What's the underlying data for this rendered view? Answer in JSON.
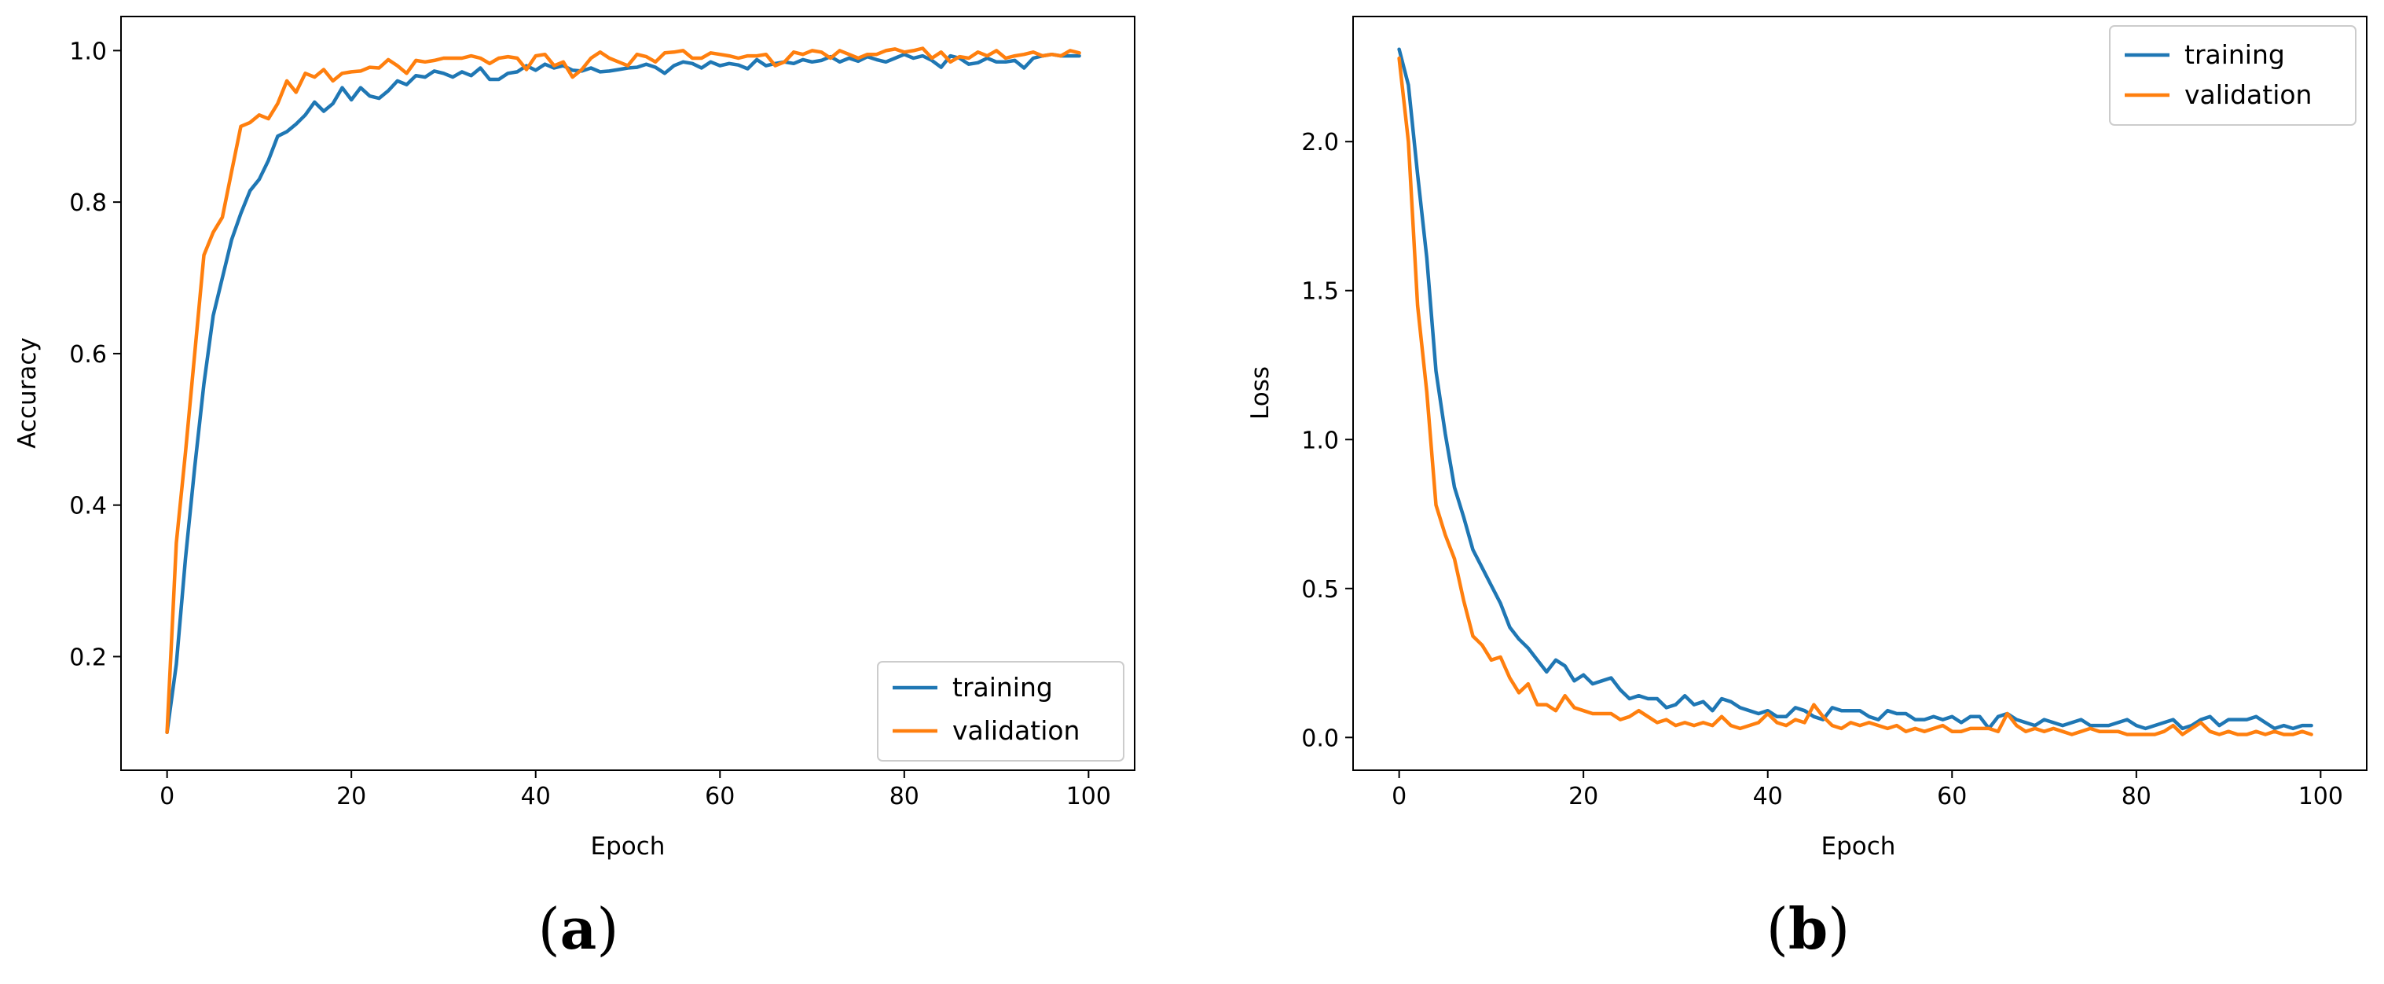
{
  "chart_data": [
    {
      "type": "line",
      "panel_label": "a",
      "title": "",
      "xlabel": "Epoch",
      "ylabel": "Accuracy",
      "xlim": [
        -5,
        105
      ],
      "ylim": [
        0.05,
        1.045
      ],
      "xticks": [
        0,
        20,
        40,
        60,
        80,
        100
      ],
      "xtick_labels": [
        "0",
        "20",
        "40",
        "60",
        "80",
        "100"
      ],
      "yticks": [
        0.2,
        0.4,
        0.6,
        0.8,
        1.0
      ],
      "ytick_labels": [
        "0.2",
        "0.4",
        "0.6",
        "0.8",
        "1.0"
      ],
      "grid": false,
      "legend_position": "lower-right",
      "series": [
        {
          "name": "training",
          "color": "#1f77b4",
          "x": [
            0,
            1,
            2,
            3,
            4,
            5,
            6,
            7,
            8,
            9,
            10,
            11,
            12,
            13,
            14,
            15,
            16,
            17,
            18,
            19,
            20,
            21,
            22,
            23,
            24,
            25,
            26,
            27,
            28,
            29,
            30,
            31,
            32,
            33,
            34,
            35,
            36,
            37,
            38,
            39,
            40,
            41,
            42,
            43,
            44,
            45,
            46,
            47,
            48,
            49,
            50,
            51,
            52,
            53,
            54,
            55,
            56,
            57,
            58,
            59,
            60,
            61,
            62,
            63,
            64,
            65,
            66,
            67,
            68,
            69,
            70,
            71,
            72,
            73,
            74,
            75,
            76,
            77,
            78,
            79,
            80,
            81,
            82,
            83,
            84,
            85,
            86,
            87,
            88,
            89,
            90,
            91,
            92,
            93,
            94,
            95,
            96,
            97,
            98,
            99
          ],
          "values": [
            0.1,
            0.19,
            0.33,
            0.45,
            0.56,
            0.65,
            0.7,
            0.75,
            0.785,
            0.815,
            0.83,
            0.855,
            0.887,
            0.893,
            0.903,
            0.915,
            0.932,
            0.92,
            0.93,
            0.951,
            0.935,
            0.951,
            0.94,
            0.937,
            0.947,
            0.96,
            0.955,
            0.967,
            0.965,
            0.973,
            0.97,
            0.965,
            0.972,
            0.967,
            0.977,
            0.962,
            0.962,
            0.97,
            0.972,
            0.98,
            0.974,
            0.982,
            0.977,
            0.98,
            0.974,
            0.973,
            0.977,
            0.972,
            0.973,
            0.975,
            0.977,
            0.978,
            0.982,
            0.978,
            0.97,
            0.98,
            0.985,
            0.983,
            0.977,
            0.985,
            0.98,
            0.983,
            0.981,
            0.976,
            0.988,
            0.98,
            0.983,
            0.985,
            0.983,
            0.988,
            0.985,
            0.987,
            0.992,
            0.985,
            0.99,
            0.986,
            0.992,
            0.988,
            0.985,
            0.99,
            0.995,
            0.99,
            0.993,
            0.987,
            0.978,
            0.993,
            0.99,
            0.982,
            0.984,
            0.99,
            0.985,
            0.985,
            0.987,
            0.977,
            0.99,
            0.993,
            0.995,
            0.993,
            0.993,
            0.993
          ]
        },
        {
          "name": "validation",
          "color": "#ff7f0e",
          "x": [
            0,
            1,
            2,
            3,
            4,
            5,
            6,
            7,
            8,
            9,
            10,
            11,
            12,
            13,
            14,
            15,
            16,
            17,
            18,
            19,
            20,
            21,
            22,
            23,
            24,
            25,
            26,
            27,
            28,
            29,
            30,
            31,
            32,
            33,
            34,
            35,
            36,
            37,
            38,
            39,
            40,
            41,
            42,
            43,
            44,
            45,
            46,
            47,
            48,
            49,
            50,
            51,
            52,
            53,
            54,
            55,
            56,
            57,
            58,
            59,
            60,
            61,
            62,
            63,
            64,
            65,
            66,
            67,
            68,
            69,
            70,
            71,
            72,
            73,
            74,
            75,
            76,
            77,
            78,
            79,
            80,
            81,
            82,
            83,
            84,
            85,
            86,
            87,
            88,
            89,
            90,
            91,
            92,
            93,
            94,
            95,
            96,
            97,
            98,
            99
          ],
          "values": [
            0.1,
            0.35,
            0.47,
            0.6,
            0.73,
            0.76,
            0.78,
            0.84,
            0.9,
            0.905,
            0.915,
            0.91,
            0.93,
            0.96,
            0.945,
            0.97,
            0.965,
            0.975,
            0.96,
            0.97,
            0.972,
            0.973,
            0.978,
            0.977,
            0.988,
            0.98,
            0.97,
            0.987,
            0.985,
            0.987,
            0.99,
            0.99,
            0.99,
            0.993,
            0.99,
            0.983,
            0.99,
            0.992,
            0.99,
            0.975,
            0.993,
            0.995,
            0.98,
            0.985,
            0.965,
            0.975,
            0.99,
            0.998,
            0.99,
            0.985,
            0.98,
            0.995,
            0.992,
            0.985,
            0.997,
            0.998,
            1.0,
            0.99,
            0.99,
            0.997,
            0.995,
            0.993,
            0.99,
            0.993,
            0.993,
            0.995,
            0.98,
            0.985,
            0.998,
            0.995,
            1.0,
            0.998,
            0.99,
            1.0,
            0.995,
            0.99,
            0.995,
            0.995,
            1.0,
            1.002,
            0.998,
            1.0,
            1.003,
            0.99,
            0.998,
            0.985,
            0.992,
            0.99,
            0.998,
            0.993,
            1.0,
            0.99,
            0.993,
            0.995,
            0.998,
            0.993,
            0.995,
            0.993,
            1.0,
            0.997
          ]
        }
      ]
    },
    {
      "type": "line",
      "panel_label": "b",
      "title": "",
      "xlabel": "Epoch",
      "ylabel": "Loss",
      "xlim": [
        -5,
        105
      ],
      "ylim": [
        -0.11,
        2.42
      ],
      "xticks": [
        0,
        20,
        40,
        60,
        80,
        100
      ],
      "xtick_labels": [
        "0",
        "20",
        "40",
        "60",
        "80",
        "100"
      ],
      "yticks": [
        0.0,
        0.5,
        1.0,
        1.5,
        2.0
      ],
      "ytick_labels": [
        "0.0",
        "0.5",
        "1.0",
        "1.5",
        "2.0"
      ],
      "grid": false,
      "legend_position": "upper-right",
      "series": [
        {
          "name": "training",
          "color": "#1f77b4",
          "x": [
            0,
            1,
            2,
            3,
            4,
            5,
            6,
            7,
            8,
            9,
            10,
            11,
            12,
            13,
            14,
            15,
            16,
            17,
            18,
            19,
            20,
            21,
            22,
            23,
            24,
            25,
            26,
            27,
            28,
            29,
            30,
            31,
            32,
            33,
            34,
            35,
            36,
            37,
            38,
            39,
            40,
            41,
            42,
            43,
            44,
            45,
            46,
            47,
            48,
            49,
            50,
            51,
            52,
            53,
            54,
            55,
            56,
            57,
            58,
            59,
            60,
            61,
            62,
            63,
            64,
            65,
            66,
            67,
            68,
            69,
            70,
            71,
            72,
            73,
            74,
            75,
            76,
            77,
            78,
            79,
            80,
            81,
            82,
            83,
            84,
            85,
            86,
            87,
            88,
            89,
            90,
            91,
            92,
            93,
            94,
            95,
            96,
            97,
            98,
            99
          ],
          "values": [
            2.31,
            2.19,
            1.89,
            1.61,
            1.23,
            1.02,
            0.84,
            0.74,
            0.63,
            0.57,
            0.51,
            0.45,
            0.37,
            0.33,
            0.3,
            0.26,
            0.22,
            0.26,
            0.24,
            0.19,
            0.21,
            0.18,
            0.19,
            0.2,
            0.16,
            0.13,
            0.14,
            0.13,
            0.13,
            0.1,
            0.11,
            0.14,
            0.11,
            0.12,
            0.09,
            0.13,
            0.12,
            0.1,
            0.09,
            0.08,
            0.09,
            0.07,
            0.07,
            0.1,
            0.09,
            0.07,
            0.06,
            0.1,
            0.09,
            0.09,
            0.09,
            0.07,
            0.06,
            0.09,
            0.08,
            0.08,
            0.06,
            0.06,
            0.07,
            0.06,
            0.07,
            0.05,
            0.07,
            0.07,
            0.03,
            0.07,
            0.08,
            0.06,
            0.05,
            0.04,
            0.06,
            0.05,
            0.04,
            0.05,
            0.06,
            0.04,
            0.04,
            0.04,
            0.05,
            0.06,
            0.04,
            0.03,
            0.04,
            0.05,
            0.06,
            0.03,
            0.04,
            0.06,
            0.07,
            0.04,
            0.06,
            0.06,
            0.06,
            0.07,
            0.05,
            0.03,
            0.04,
            0.03,
            0.04,
            0.04
          ]
        },
        {
          "name": "validation",
          "color": "#ff7f0e",
          "x": [
            0,
            1,
            2,
            3,
            4,
            5,
            6,
            7,
            8,
            9,
            10,
            11,
            12,
            13,
            14,
            15,
            16,
            17,
            18,
            19,
            20,
            21,
            22,
            23,
            24,
            25,
            26,
            27,
            28,
            29,
            30,
            31,
            32,
            33,
            34,
            35,
            36,
            37,
            38,
            39,
            40,
            41,
            42,
            43,
            44,
            45,
            46,
            47,
            48,
            49,
            50,
            51,
            52,
            53,
            54,
            55,
            56,
            57,
            58,
            59,
            60,
            61,
            62,
            63,
            64,
            65,
            66,
            67,
            68,
            69,
            70,
            71,
            72,
            73,
            74,
            75,
            76,
            77,
            78,
            79,
            80,
            81,
            82,
            83,
            84,
            85,
            86,
            87,
            88,
            89,
            90,
            91,
            92,
            93,
            94,
            95,
            96,
            97,
            98,
            99
          ],
          "values": [
            2.28,
            2.0,
            1.45,
            1.16,
            0.78,
            0.68,
            0.6,
            0.46,
            0.34,
            0.31,
            0.26,
            0.27,
            0.2,
            0.15,
            0.18,
            0.11,
            0.11,
            0.09,
            0.14,
            0.1,
            0.09,
            0.08,
            0.08,
            0.08,
            0.06,
            0.07,
            0.09,
            0.07,
            0.05,
            0.06,
            0.04,
            0.05,
            0.04,
            0.05,
            0.04,
            0.07,
            0.04,
            0.03,
            0.04,
            0.05,
            0.08,
            0.05,
            0.04,
            0.06,
            0.05,
            0.11,
            0.07,
            0.04,
            0.03,
            0.05,
            0.04,
            0.05,
            0.04,
            0.03,
            0.04,
            0.02,
            0.03,
            0.02,
            0.03,
            0.04,
            0.02,
            0.02,
            0.03,
            0.03,
            0.03,
            0.02,
            0.08,
            0.04,
            0.02,
            0.03,
            0.02,
            0.03,
            0.02,
            0.01,
            0.02,
            0.03,
            0.02,
            0.02,
            0.02,
            0.01,
            0.01,
            0.01,
            0.01,
            0.02,
            0.04,
            0.01,
            0.03,
            0.05,
            0.02,
            0.01,
            0.02,
            0.01,
            0.01,
            0.02,
            0.01,
            0.02,
            0.01,
            0.01,
            0.02,
            0.01
          ]
        }
      ]
    }
  ]
}
